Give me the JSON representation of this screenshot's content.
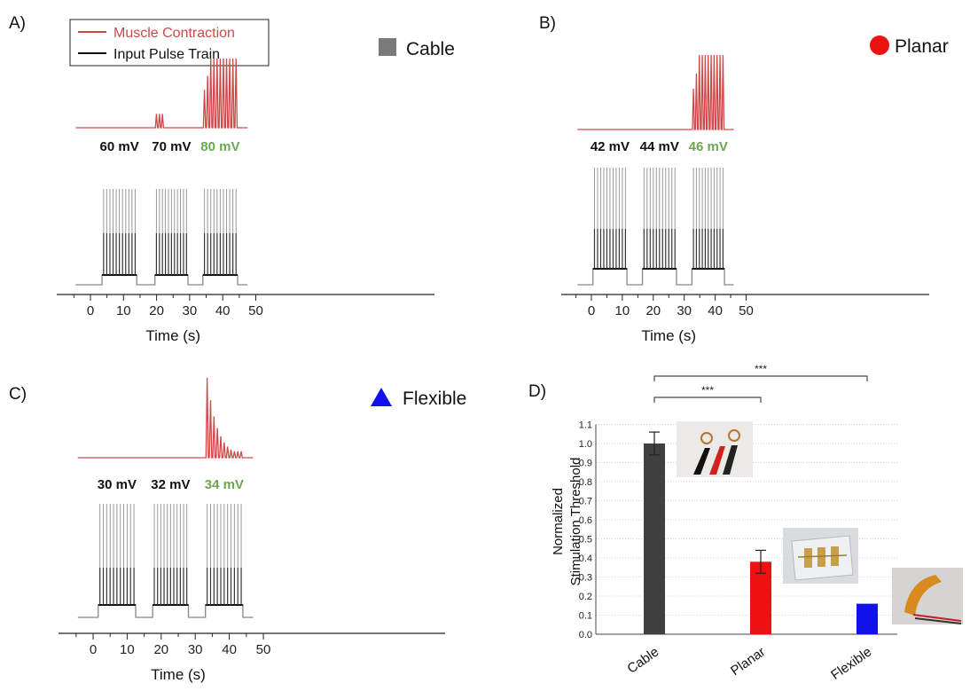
{
  "colors": {
    "muscle": "#d0494a",
    "pulse": "#111111",
    "highlight": "#6aa84f",
    "cable": "#404040",
    "planar": "#ee1111",
    "flexible": "#1111ee"
  },
  "legend": {
    "muscle": "Muscle Contraction",
    "pulse": "Input Pulse Train"
  },
  "chart_data": [
    {
      "panel": "A)",
      "type": "line",
      "electrode": "Cable",
      "marker": "square",
      "xlabel": "Time (s)",
      "xlim": [
        -5,
        50
      ],
      "xticks": [
        0,
        10,
        20,
        30,
        40,
        50
      ],
      "x_tick_labels": [
        "0",
        "10",
        "20",
        "30",
        "40",
        "50"
      ],
      "trains": [
        {
          "voltage": "60 mV",
          "start": 3.5,
          "end": 14.0,
          "pulses": 11,
          "response": "none"
        },
        {
          "voltage": "70 mV",
          "start": 19.5,
          "end": 29.5,
          "pulses": 11,
          "response": "weak"
        },
        {
          "voltage": "80 mV",
          "start": 34.0,
          "end": 44.5,
          "pulses": 11,
          "response": "full",
          "threshold": true
        }
      ]
    },
    {
      "panel": "B)",
      "type": "line",
      "electrode": "Planar",
      "marker": "circle",
      "xlabel": "Time (s)",
      "xlim": [
        -5,
        50
      ],
      "xticks": [
        0,
        10,
        20,
        30,
        40,
        50
      ],
      "x_tick_labels": [
        "0",
        "10",
        "20",
        "30",
        "40",
        "50"
      ],
      "trains": [
        {
          "voltage": "42 mV",
          "start": 0.5,
          "end": 11.5,
          "pulses": 11,
          "response": "none"
        },
        {
          "voltage": "44 mV",
          "start": 16.5,
          "end": 27.5,
          "pulses": 11,
          "response": "none"
        },
        {
          "voltage": "46 mV",
          "start": 32.5,
          "end": 43.0,
          "pulses": 11,
          "response": "full",
          "threshold": true
        }
      ]
    },
    {
      "panel": "C)",
      "type": "line",
      "electrode": "Flexible",
      "marker": "triangle",
      "xlabel": "Time (s)",
      "xlim": [
        -5,
        50
      ],
      "xticks": [
        0,
        10,
        20,
        30,
        40,
        50
      ],
      "x_tick_labels": [
        "0",
        "10",
        "20",
        "30",
        "40",
        "50"
      ],
      "trains": [
        {
          "voltage": "30 mV",
          "start": 1.5,
          "end": 12.5,
          "pulses": 11,
          "response": "none"
        },
        {
          "voltage": "32 mV",
          "start": 17.5,
          "end": 28.0,
          "pulses": 11,
          "response": "none"
        },
        {
          "voltage": "34 mV",
          "start": 33.0,
          "end": 44.0,
          "pulses": 11,
          "response": "decaying",
          "threshold": true
        }
      ]
    },
    {
      "panel": "D)",
      "type": "bar",
      "ylabel_line1": "Normalized",
      "ylabel_line2": "Stimulation Threshold",
      "ylim": [
        0,
        1.1
      ],
      "yticks": [
        0,
        0.1,
        0.2,
        0.3,
        0.4,
        0.5,
        0.6,
        0.7,
        0.8,
        0.9,
        1.0,
        1.1
      ],
      "y_tick_labels": [
        "0.0",
        "0.1",
        "0.2",
        "0.3",
        "0.4",
        "0.5",
        "0.6",
        "0.7",
        "0.8",
        "0.9",
        "1.0",
        "1.1"
      ],
      "grid": true,
      "categories": [
        "Cable",
        "Planar",
        "Flexible"
      ],
      "values": [
        1.0,
        0.38,
        0.16
      ],
      "errors": [
        0.06,
        0.06,
        0.0
      ],
      "significance": [
        {
          "from": "Cable",
          "to": "Planar",
          "label": "***"
        },
        {
          "from": "Cable",
          "to": "Flexible",
          "label": "***"
        }
      ]
    }
  ]
}
